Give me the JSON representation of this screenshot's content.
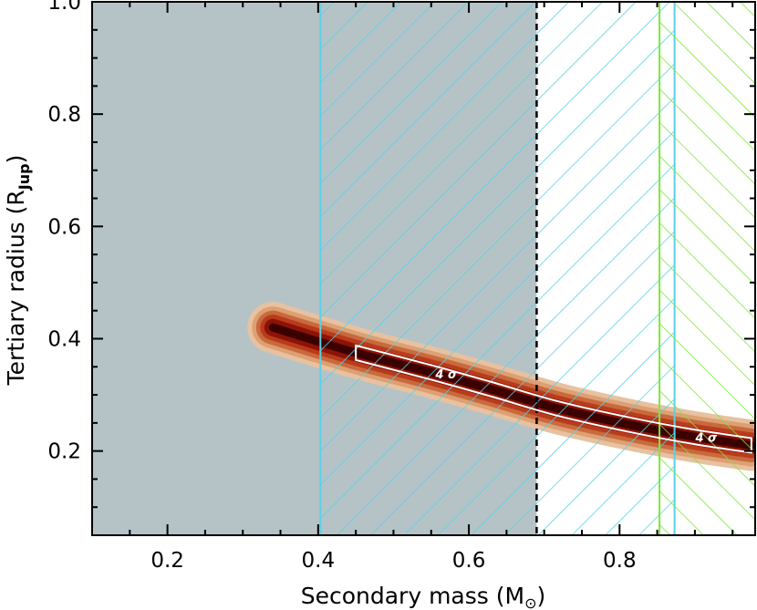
{
  "chart_data": {
    "type": "contour",
    "xlabel_main": "Secondary mass (M",
    "xlabel_sub": "⊙",
    "xlabel_close": ")",
    "ylabel_main": "Tertiary radius (R",
    "ylabel_sub": "Jup",
    "ylabel_close": ")",
    "xlim": [
      0.1,
      0.98
    ],
    "ylim": [
      0.05,
      1.0
    ],
    "x_ticks": [
      0.2,
      0.4,
      0.6,
      0.8
    ],
    "x_tick_labels": [
      "0.2",
      "0.4",
      "0.6",
      "0.8"
    ],
    "y_ticks": [
      0.2,
      0.4,
      0.6,
      0.8,
      1.0
    ],
    "y_tick_labels": [
      "0.2",
      "0.4",
      "0.6",
      "0.8",
      "1.0"
    ],
    "excluded_gray_region": {
      "x_range": [
        0.1,
        0.69
      ],
      "color": "#b5c3c6"
    },
    "cyan_hatch_region": {
      "x_range": [
        0.403,
        0.873
      ],
      "color": "#5bd0e6"
    },
    "green_hatch_region": {
      "x_range": [
        0.853,
        0.98
      ],
      "color": "#7ee63a"
    },
    "dashed_line_x": 0.69,
    "contour_ridge": [
      {
        "x": 0.34,
        "y": 0.42
      },
      {
        "x": 0.45,
        "y": 0.375
      },
      {
        "x": 0.55,
        "y": 0.34
      },
      {
        "x": 0.63,
        "y": 0.31
      },
      {
        "x": 0.72,
        "y": 0.275
      },
      {
        "x": 0.82,
        "y": 0.245
      },
      {
        "x": 0.9,
        "y": 0.225
      },
      {
        "x": 0.975,
        "y": 0.21
      }
    ],
    "contour_colors": [
      "#e8c1a0",
      "#dda073",
      "#c9693e",
      "#b83c1b",
      "#8c1306",
      "#3b0000"
    ],
    "contour_labels": [
      {
        "text": "4 σ",
        "x": 0.57,
        "y": 0.335
      },
      {
        "text": "4 σ",
        "x": 0.915,
        "y": 0.222
      }
    ]
  }
}
